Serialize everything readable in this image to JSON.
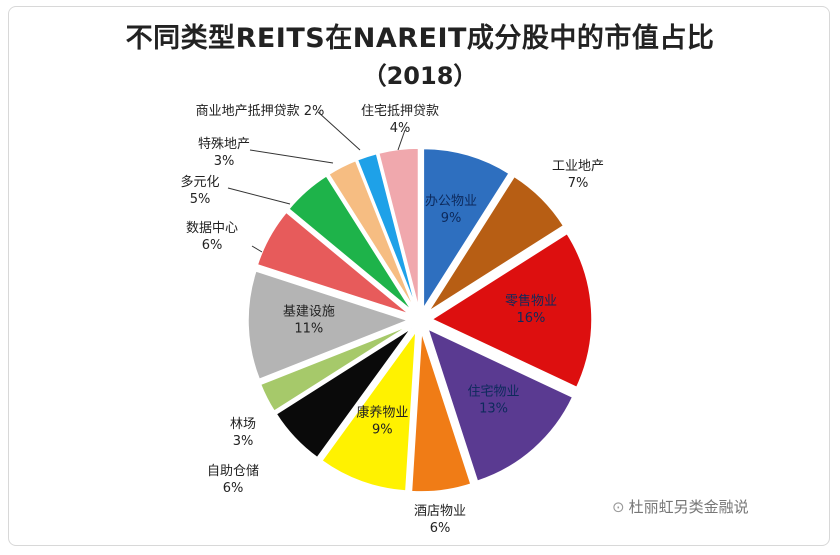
{
  "chart_data": {
    "type": "pie",
    "title": "不同类型REITS在NAREIT成分股中的市值占比",
    "subtitle": "（2018）",
    "slices": [
      {
        "label": "办公物业",
        "value": 9,
        "value_label": "9%",
        "color": "#2e6fbf"
      },
      {
        "label": "工业地产",
        "value": 7,
        "value_label": "7%",
        "color": "#b75e14"
      },
      {
        "label": "零售物业",
        "value": 16,
        "value_label": "16%",
        "color": "#dd0f0f"
      },
      {
        "label": "住宅物业",
        "value": 13,
        "value_label": "13%",
        "color": "#5a3a91"
      },
      {
        "label": "酒店物业",
        "value": 6,
        "value_label": "6%",
        "color": "#f07c16"
      },
      {
        "label": "康养物业",
        "value": 9,
        "value_label": "9%",
        "color": "#fff200"
      },
      {
        "label": "自助仓储",
        "value": 6,
        "value_label": "6%",
        "color": "#0a0a0a"
      },
      {
        "label": "林场",
        "value": 3,
        "value_label": "3%",
        "color": "#a6c96a"
      },
      {
        "label": "基建设施",
        "value": 11,
        "value_label": "11%",
        "color": "#b4b4b4"
      },
      {
        "label": "数据中心",
        "value": 6,
        "value_label": "6%",
        "color": "#e75b5b"
      },
      {
        "label": "多元化",
        "value": 5,
        "value_label": "5%",
        "color": "#1eb34a"
      },
      {
        "label": "特殊地产",
        "value": 3,
        "value_label": "3%",
        "color": "#f6bd82"
      },
      {
        "label": "商业地产抵押贷款",
        "value": 2,
        "value_label": "2%",
        "color": "#1ea1e8"
      },
      {
        "label": "住宅抵押贷款",
        "value": 4,
        "value_label": "4%",
        "color": "#f0a8ad"
      }
    ]
  },
  "watermark": {
    "icon": "wechat-icon",
    "text": "杜丽虹另类金融说"
  }
}
